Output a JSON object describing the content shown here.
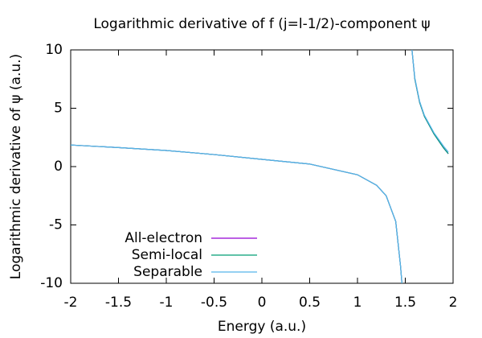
{
  "chart_data": {
    "type": "line",
    "title": "Logarithmic derivative of f (j=l-1/2)-component ψ",
    "xlabel": "Energy (a.u.)",
    "ylabel": "Logarithmic derivative of ψ (a.u.)",
    "x": [
      -2,
      -1.5,
      -1,
      -0.5,
      0,
      0.5,
      1,
      1.2,
      1.3,
      1.4,
      1.45,
      1.465,
      1.5,
      1.57,
      1.6,
      1.65,
      1.7,
      1.8,
      1.9,
      1.95
    ],
    "series": [
      {
        "name": "All-electron",
        "color": "#9400d3",
        "values": [
          1.85,
          1.63,
          1.38,
          1.03,
          0.62,
          0.22,
          -0.7,
          -1.6,
          -2.5,
          -4.7,
          -8.5,
          -10,
          null,
          10,
          7.5,
          5.5,
          4.3,
          2.8,
          1.6,
          1.1
        ]
      },
      {
        "name": "Semi-local",
        "color": "#009e73",
        "values": [
          1.85,
          1.63,
          1.38,
          1.03,
          0.62,
          0.22,
          -0.7,
          -1.6,
          -2.5,
          -4.7,
          -8.5,
          -10,
          null,
          10,
          7.5,
          5.5,
          4.3,
          2.8,
          1.6,
          1.1
        ]
      },
      {
        "name": "Separable",
        "color": "#56b4e9",
        "values": [
          1.85,
          1.63,
          1.38,
          1.03,
          0.62,
          0.22,
          -0.7,
          -1.6,
          -2.5,
          -4.7,
          -8.5,
          -10,
          null,
          10,
          7.6,
          5.6,
          4.4,
          2.9,
          1.75,
          1.25
        ]
      }
    ],
    "xlim": [
      -2,
      2
    ],
    "xticks": [
      -2,
      -1.5,
      -1,
      -0.5,
      0,
      0.5,
      1,
      1.5,
      2
    ],
    "ylim": [
      -10,
      10
    ],
    "yticks": [
      -10,
      -5,
      0,
      5,
      10
    ],
    "grid": false,
    "legend": "lower left"
  }
}
